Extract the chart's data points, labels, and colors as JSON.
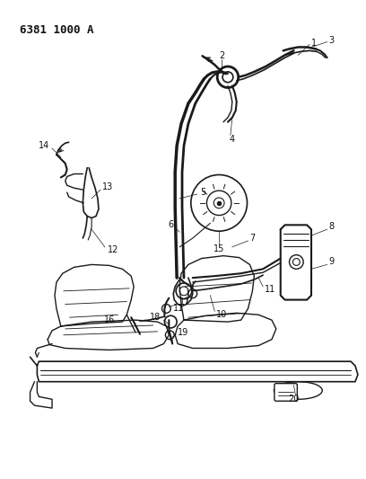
{
  "title": "6381 1000 A",
  "bg_color": "#ffffff",
  "line_color": "#1a1a1a",
  "label_color": "#111111",
  "fig_width": 4.08,
  "fig_height": 5.33,
  "dpi": 100,
  "label_fontsize": 7.0
}
